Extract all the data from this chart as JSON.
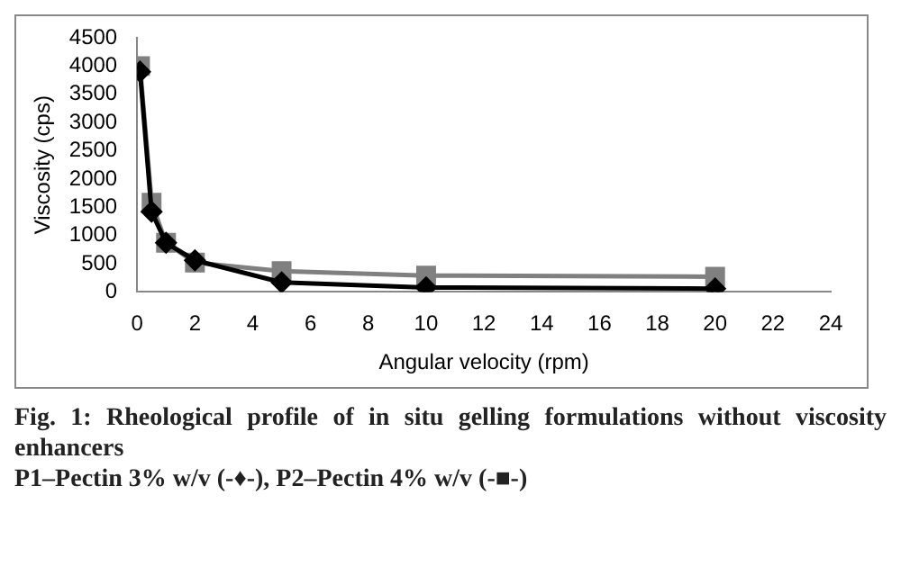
{
  "chart_data": {
    "type": "line",
    "title": "Fig. 1: Rheological profile of in situ gelling formulations without viscosity enhancers",
    "annotations": [
      "P1–Pectin 3% w/v (-♦-), P2–Pectin 4% w/v (-■-)"
    ],
    "xlabel": "Angular velocity (rpm)",
    "ylabel": "Viscosity (cps)",
    "xlim": [
      0,
      24
    ],
    "xticks": [
      0,
      2,
      4,
      6,
      8,
      10,
      12,
      14,
      16,
      18,
      20,
      22,
      24
    ],
    "ylim": [
      0,
      4500
    ],
    "yticks": [
      0,
      500,
      1000,
      1500,
      2000,
      2500,
      3000,
      3500,
      4000,
      4500
    ],
    "grid": false,
    "legend": false,
    "line_style": "solid",
    "x": [
      0.1,
      0.5,
      1,
      2,
      5,
      10,
      20
    ],
    "series": [
      {
        "color": "#000000",
        "marker": "diamond",
        "values": [
          3900,
          1420,
          870,
          560,
          170,
          80,
          60
        ]
      },
      {
        "color": "#808080",
        "marker": "square",
        "values": [
          4000,
          1580,
          870,
          520,
          370,
          290,
          270
        ]
      }
    ]
  }
}
